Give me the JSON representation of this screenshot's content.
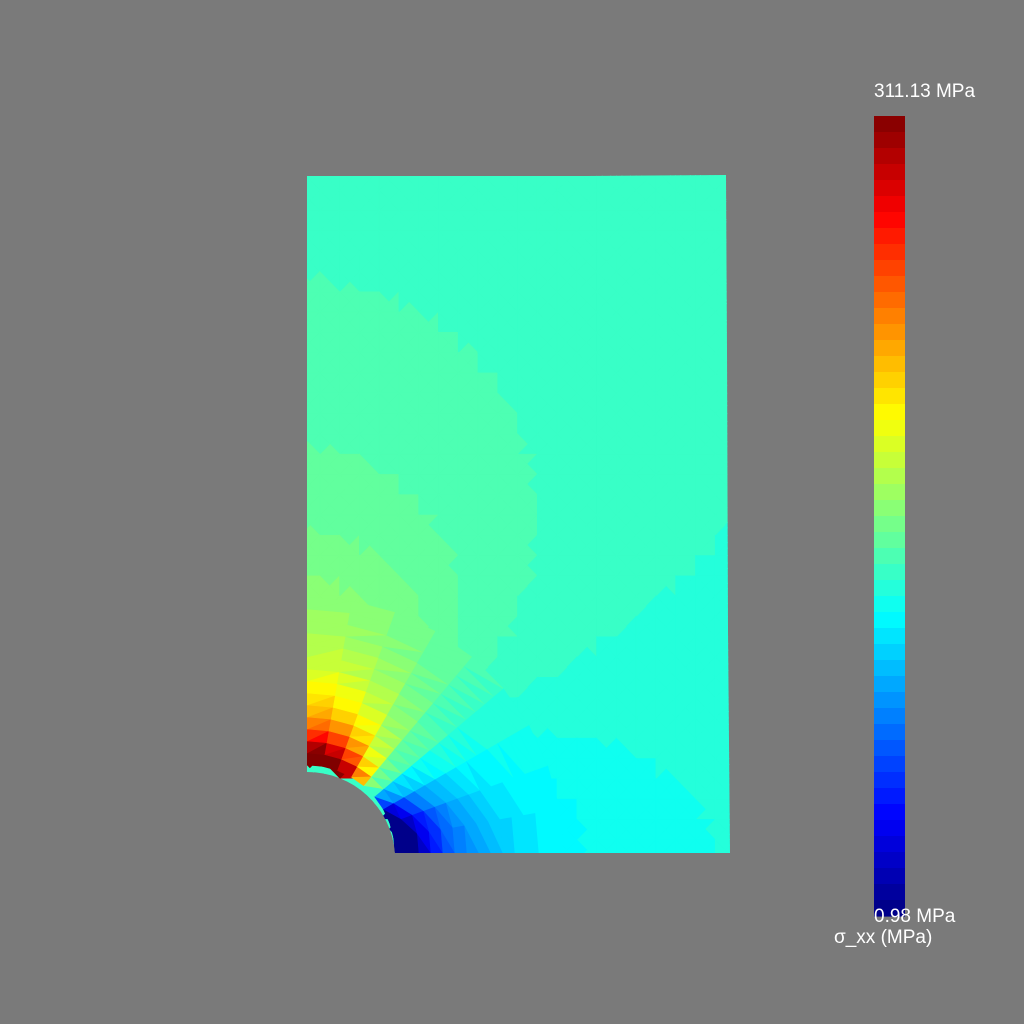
{
  "quantity_label": "σ_xx (MPa)",
  "colorbar": {
    "max_label": "311.13 MPa",
    "min_label": "0.98 MPa",
    "max_value": 311.13,
    "min_value": 0.98,
    "colormap": "jet",
    "levels": 50,
    "orientation": "vertical"
  },
  "colors": {
    "background": "#7a7a7a",
    "label_text": "#ffffff"
  },
  "field": {
    "geometry": "quarter plate with circular hole at lower-left corner",
    "base_value": 132.0,
    "peak_value": 311.13,
    "trough_value": 0.98
  }
}
